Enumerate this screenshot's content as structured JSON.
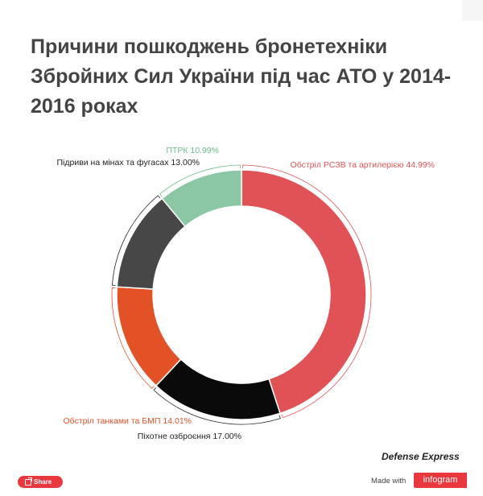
{
  "chart_data": {
    "type": "pie",
    "donut": true,
    "title": "Причини пошкоджень бронетехніки Збройних Сил України під час АТО у 2014-2016 роках",
    "legend": "none",
    "slices": [
      {
        "label": "Обстріл РСЗВ та артилерією",
        "value": 44.99,
        "value_label": "44.99%",
        "color": "#e05255",
        "label_color": "#e05255"
      },
      {
        "label": "Піхотне озброєння",
        "value": 17.0,
        "value_label": "17.00%",
        "color": "#0a0a0a",
        "label_color": "#222222"
      },
      {
        "label": "Обстріл танками та БМП",
        "value": 14.01,
        "value_label": "14.01%",
        "color": "#e35226",
        "label_color": "#e35226"
      },
      {
        "label": "Підриви на мінах та фугасах",
        "value": 13.0,
        "value_label": "13.00%",
        "color": "#474747",
        "label_color": "#222222"
      },
      {
        "label": "ПТРК",
        "value": 10.99,
        "value_label": "10.99%",
        "color": "#8cc7a5",
        "label_color": "#6dbb8a"
      }
    ]
  },
  "footer": {
    "brand": "Defense Express",
    "made_with": "Made with",
    "infogram": "infogram",
    "share_label": "Share"
  }
}
